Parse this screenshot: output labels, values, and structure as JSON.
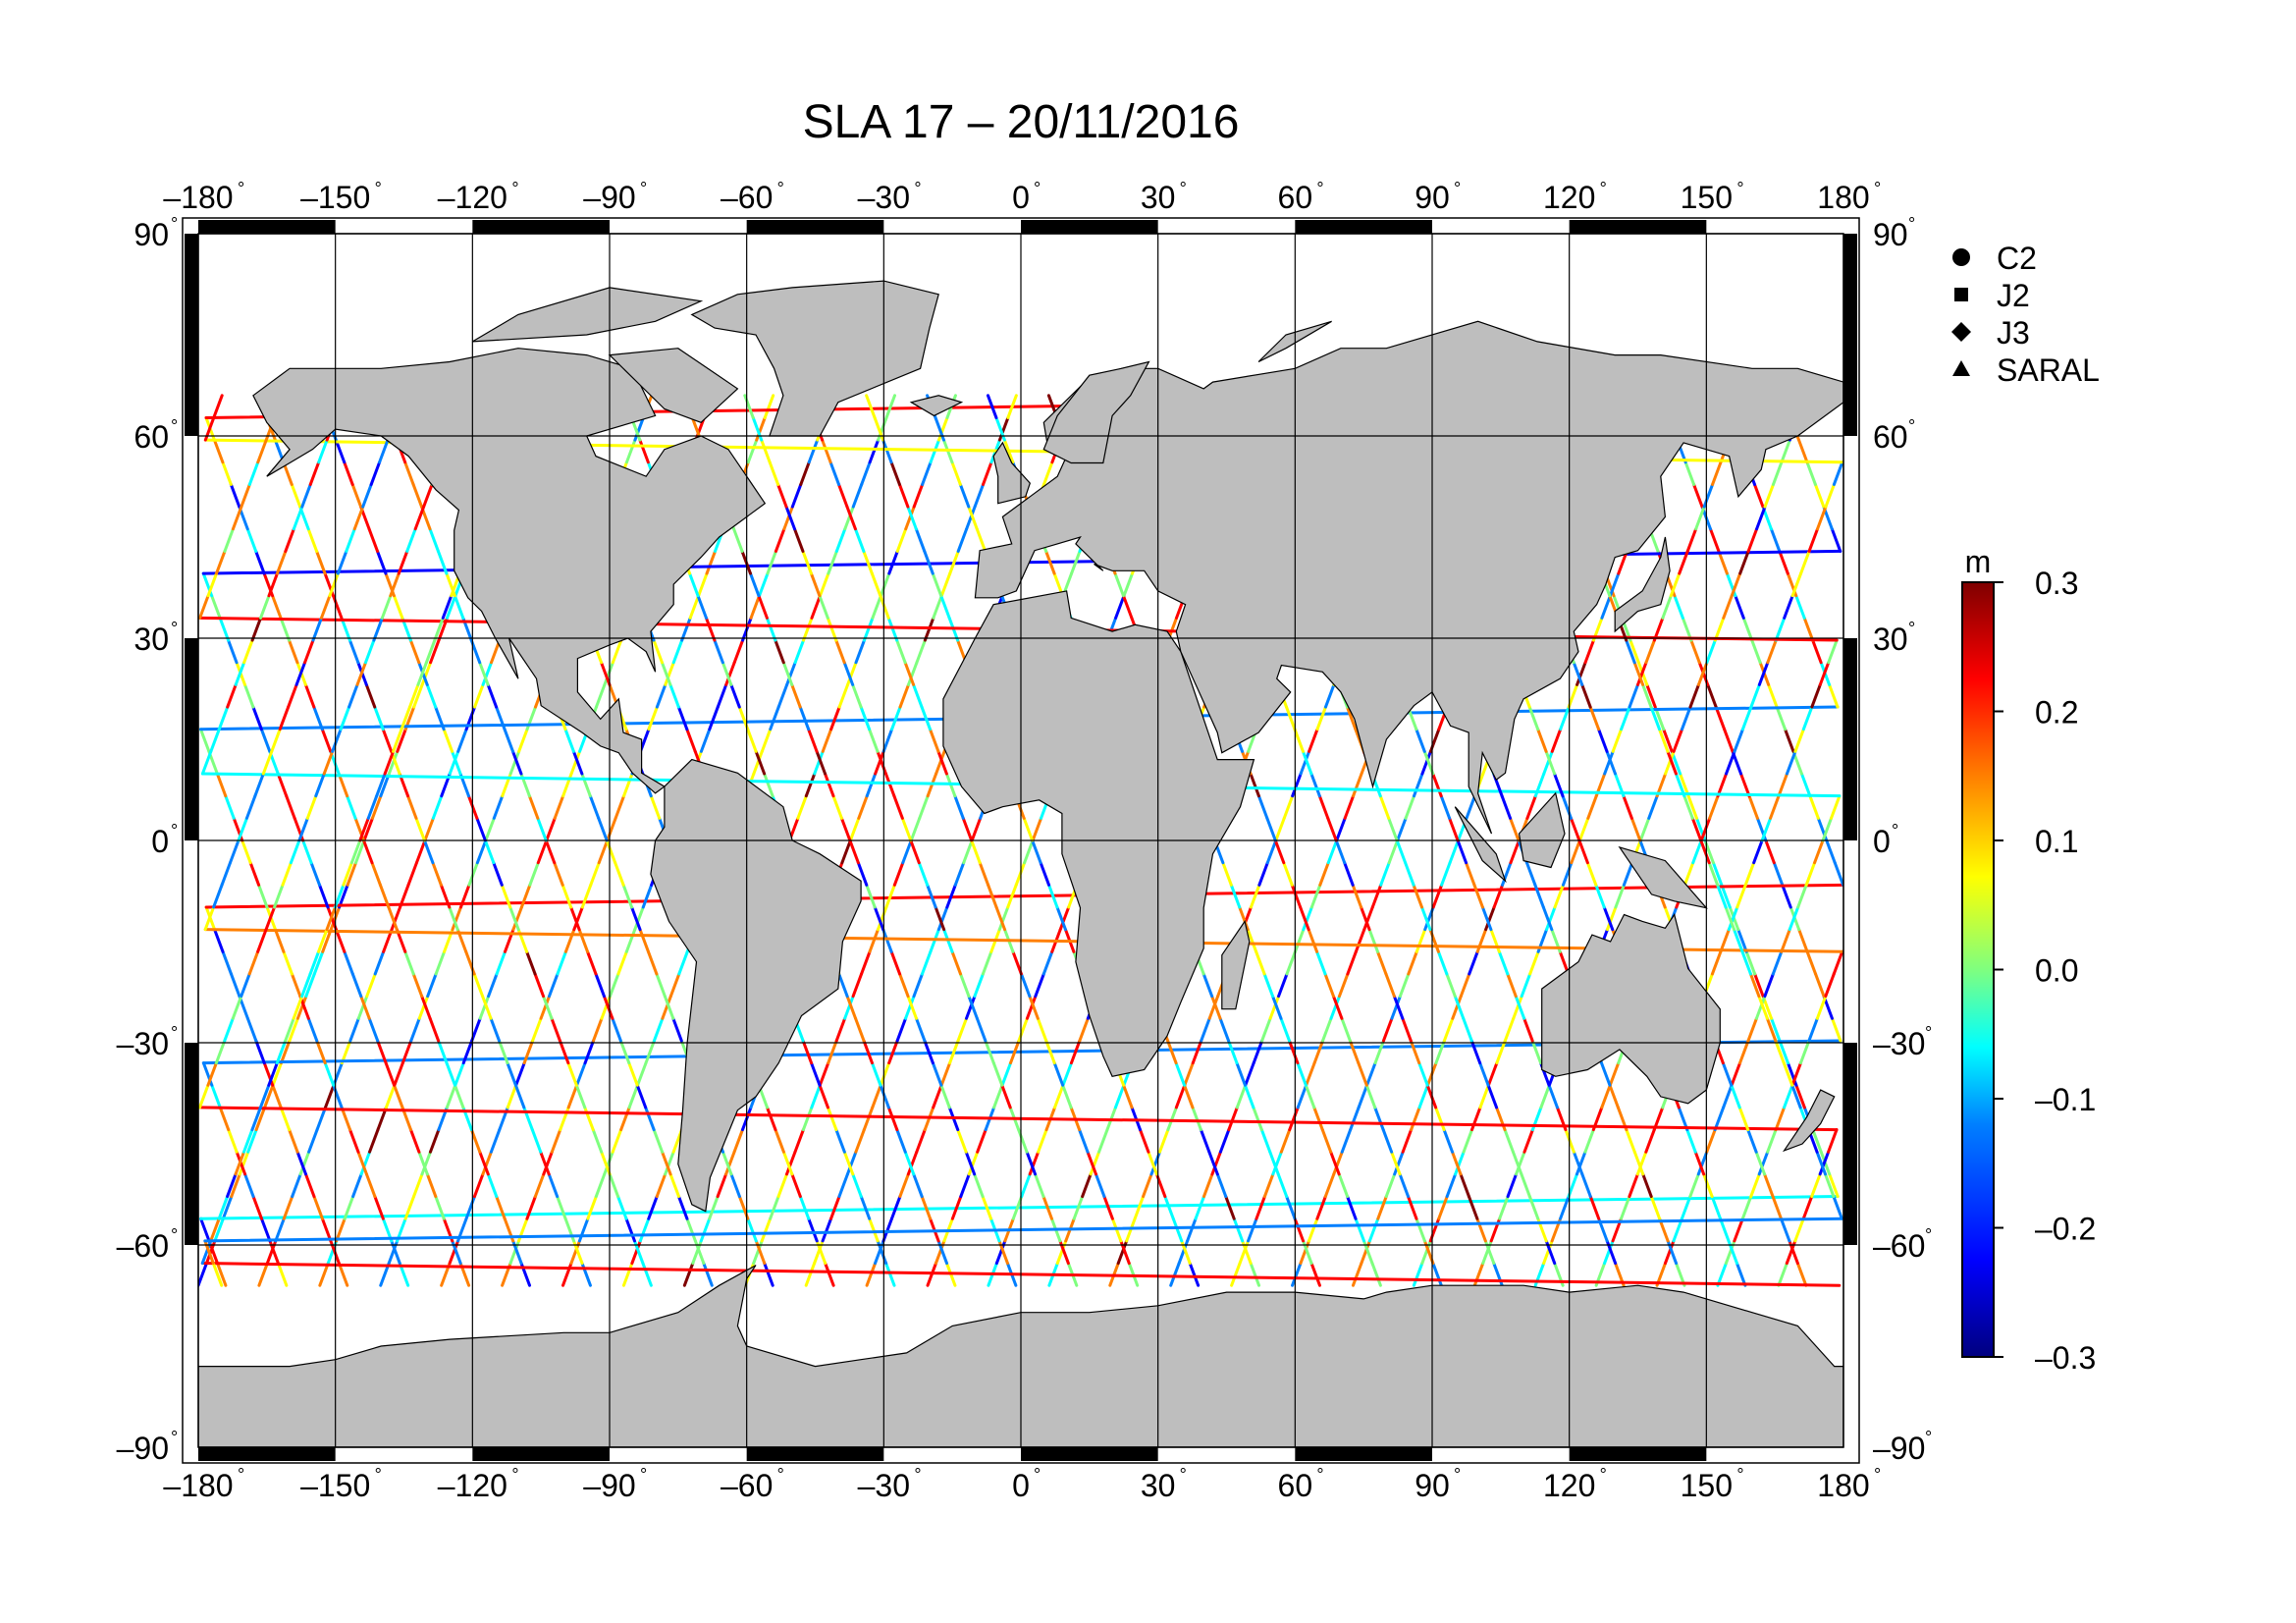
{
  "title": "SLA 17 – 20/11/2016",
  "axes": {
    "lon_ticks": [
      {
        "label": "–180",
        "value": -180
      },
      {
        "label": "–150",
        "value": -150
      },
      {
        "label": "–120",
        "value": -120
      },
      {
        "label": "–90",
        "value": -90
      },
      {
        "label": "–60",
        "value": -60
      },
      {
        "label": "–30",
        "value": -30
      },
      {
        "label": "0",
        "value": 0
      },
      {
        "label": "30",
        "value": 30
      },
      {
        "label": "60",
        "value": 60
      },
      {
        "label": "90",
        "value": 90
      },
      {
        "label": "120",
        "value": 120
      },
      {
        "label": "150",
        "value": 150
      },
      {
        "label": "180",
        "value": 180
      }
    ],
    "lat_ticks": [
      {
        "label": "90",
        "value": 90
      },
      {
        "label": "60",
        "value": 60
      },
      {
        "label": "30",
        "value": 30
      },
      {
        "label": "0",
        "value": 0
      },
      {
        "label": "–30",
        "value": -30
      },
      {
        "label": "–60",
        "value": -60
      },
      {
        "label": "–90",
        "value": -90
      }
    ],
    "degree_symbol": "°",
    "lon_range": [
      -180,
      180
    ],
    "lat_range": [
      -90,
      90
    ],
    "grid": true
  },
  "legend": {
    "placement": "top-right",
    "items": [
      {
        "label": "C2",
        "marker": "circle"
      },
      {
        "label": "J2",
        "marker": "square"
      },
      {
        "label": "J3",
        "marker": "diamond"
      },
      {
        "label": "SARAL",
        "marker": "triangle"
      }
    ]
  },
  "colorbar": {
    "unit": "m",
    "range": [
      -0.3,
      0.3
    ],
    "ticks": [
      {
        "label": "0.3",
        "value": 0.3
      },
      {
        "label": "0.2",
        "value": 0.2
      },
      {
        "label": "0.1",
        "value": 0.1
      },
      {
        "label": "0.0",
        "value": 0.0
      },
      {
        "label": "–0.1",
        "value": -0.1
      },
      {
        "label": "–0.2",
        "value": -0.2
      },
      {
        "label": "–0.3",
        "value": -0.3
      }
    ],
    "colormap": [
      "#00007f",
      "#0000ff",
      "#007fff",
      "#00ffff",
      "#7fff7f",
      "#ffff00",
      "#ff7f00",
      "#ff0000",
      "#7f0000"
    ]
  },
  "colors": {
    "land": "#bebebe",
    "coast": "#000000",
    "ocean": "#ffffff"
  },
  "chart_data": {
    "type": "scatter",
    "description_units": "sea level anomaly along altimeter ground tracks, metres",
    "x": "longitude (degrees)",
    "y": "latitude (degrees)",
    "series": [
      {
        "name": "C2",
        "values": []
      },
      {
        "name": "J2",
        "values": []
      },
      {
        "name": "J3",
        "values": []
      },
      {
        "name": "SARAL",
        "values": []
      }
    ],
    "value_range": [
      -0.3,
      0.3
    ]
  }
}
